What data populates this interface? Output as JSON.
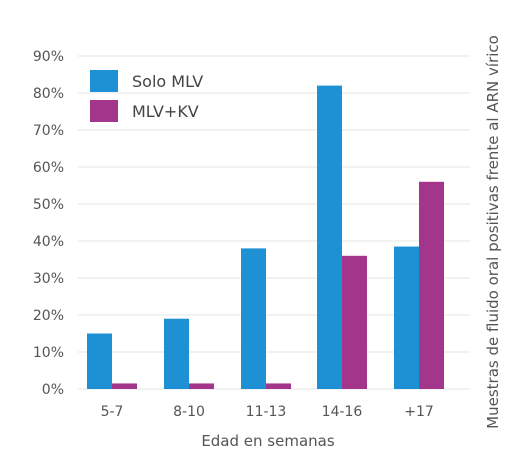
{
  "chart_data": {
    "type": "bar",
    "xlabel": "Edad en semanas",
    "ylabel": "Muestras de fluido oral positivas frente al ARN vírico",
    "categories": [
      "5-7",
      "8-10",
      "11-13",
      "14-16",
      "+17"
    ],
    "y_ticks": [
      "0%",
      "10%",
      "20%",
      "30%",
      "40%",
      "50%",
      "60%",
      "70%",
      "80%",
      "90%"
    ],
    "ylim": [
      0,
      90
    ],
    "grid": true,
    "legend_position": "top-left",
    "series": [
      {
        "name": "Solo MLV",
        "color": "#1e90d4",
        "values": [
          15,
          19,
          38,
          82,
          38.5
        ]
      },
      {
        "name": "MLV+KV",
        "color": "#a3358b",
        "values": [
          1.5,
          1.5,
          1.5,
          36,
          56
        ]
      }
    ],
    "colors": {
      "grid": "#e6e6e6",
      "text": "#555555"
    }
  }
}
